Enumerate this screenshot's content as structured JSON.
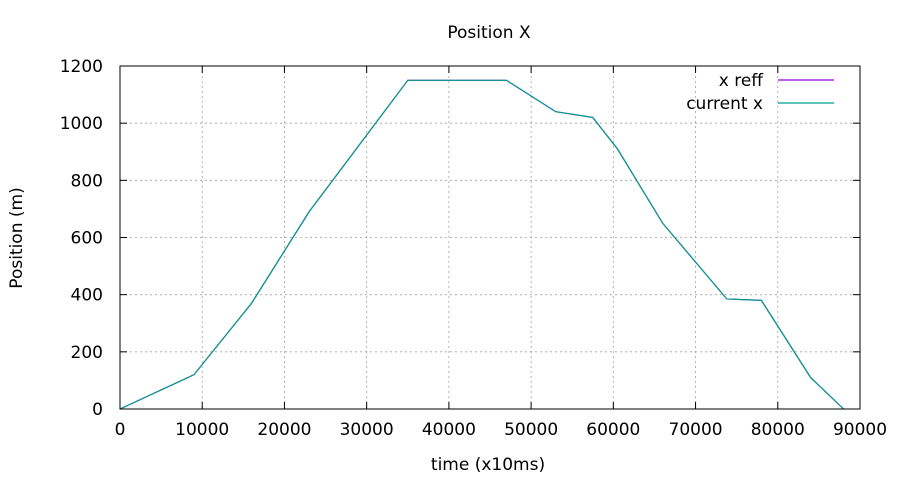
{
  "chart_data": {
    "type": "line",
    "title": "Position X",
    "xlabel": "time (x10ms)",
    "ylabel": "Position (m)",
    "xlim": [
      0,
      90000
    ],
    "ylim": [
      0,
      1200
    ],
    "x_ticks": [
      0,
      10000,
      20000,
      30000,
      40000,
      50000,
      60000,
      70000,
      80000,
      90000
    ],
    "y_ticks": [
      0,
      200,
      400,
      600,
      800,
      1000,
      1200
    ],
    "grid": true,
    "legend_position": "top-right",
    "series": [
      {
        "name": "x reff",
        "color": "#9400d3",
        "x": [
          0,
          9000,
          16000,
          23000,
          35000,
          47000,
          53000,
          57500,
          60500,
          66000,
          73800,
          78000,
          84000,
          88000
        ],
        "y": [
          0,
          120,
          370,
          690,
          1150,
          1150,
          1040,
          1020,
          910,
          650,
          385,
          380,
          110,
          0
        ]
      },
      {
        "name": "current x",
        "color": "#009e8f",
        "x": [
          0,
          9000,
          16000,
          23000,
          35000,
          47000,
          53000,
          57500,
          60500,
          66000,
          73800,
          78000,
          84000,
          88000
        ],
        "y": [
          0,
          120,
          370,
          690,
          1150,
          1150,
          1040,
          1020,
          910,
          650,
          385,
          380,
          110,
          0
        ]
      }
    ]
  }
}
